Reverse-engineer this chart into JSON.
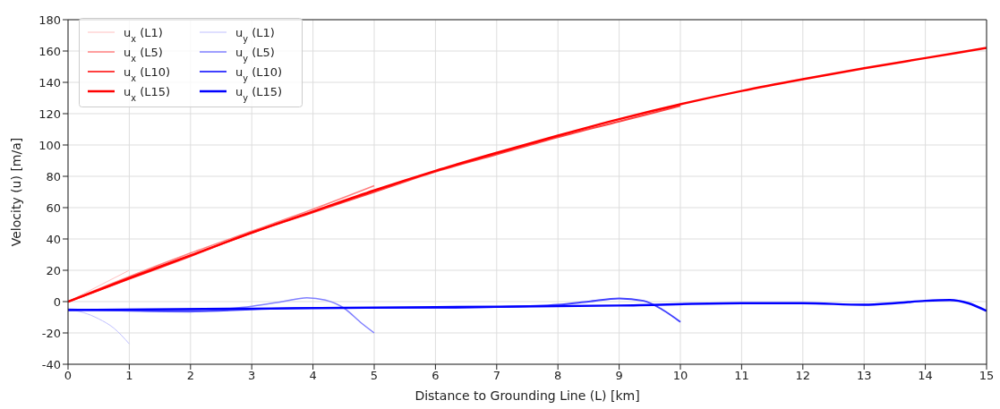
{
  "chart_data": {
    "type": "line",
    "xlabel": "Distance to Grounding Line (L) [km]",
    "ylabel": "Velocity (u) [m/a]",
    "xlim": [
      0,
      15
    ],
    "xticks": [
      0,
      1,
      2,
      3,
      4,
      5,
      6,
      7,
      8,
      9,
      10,
      11,
      12,
      13,
      14,
      15
    ],
    "ylim": [
      -40,
      180
    ],
    "yticks": [
      -40,
      -20,
      0,
      20,
      40,
      60,
      80,
      100,
      120,
      140,
      160,
      180
    ],
    "grid": true,
    "legend": "top left",
    "marker": "none",
    "line_style": "solid",
    "series": [
      {
        "name": "u$_{x}$ (L1)",
        "color": "#ffc0c0",
        "x": [
          0,
          0.5,
          1
        ],
        "values": [
          0,
          10,
          20
        ]
      },
      {
        "name": "u$_{x}$ (L5)",
        "color": "#ff8080",
        "x": [
          0,
          1,
          2,
          3,
          4,
          5
        ],
        "values": [
          0,
          16,
          31,
          45,
          59,
          74
        ]
      },
      {
        "name": "u$_{x}$ (L10)",
        "color": "#ff4040",
        "x": [
          0,
          1,
          2,
          3,
          4,
          5,
          6,
          7,
          8,
          9,
          10
        ],
        "values": [
          0,
          14.5,
          29,
          44,
          57,
          70,
          83,
          94,
          105,
          115,
          125
        ]
      },
      {
        "name": "u$_{x}$ (L15)",
        "color": "#ff0000",
        "x": [
          0,
          1,
          2,
          3,
          4,
          5,
          6,
          7,
          8,
          9,
          10,
          11,
          12,
          13,
          14,
          15
        ],
        "values": [
          0,
          15,
          29.5,
          44,
          57.5,
          71,
          83.5,
          95,
          106,
          116.5,
          126,
          134.5,
          142,
          149,
          155.5,
          162
        ]
      },
      {
        "name": "u$_{y}$ (L1)",
        "color": "#c0c0ff",
        "x": [
          0,
          0.25,
          0.5,
          0.75,
          1
        ],
        "values": [
          -5,
          -7,
          -11,
          -17,
          -27
        ]
      },
      {
        "name": "u$_{y}$ (L5)",
        "color": "#8080ff",
        "x": [
          0,
          1,
          2,
          2.5,
          3,
          3.5,
          3.9,
          4.2,
          4.5,
          4.8,
          5
        ],
        "values": [
          -5,
          -6,
          -6.5,
          -5,
          -3,
          0,
          2.5,
          1,
          -4,
          -14,
          -20
        ]
      },
      {
        "name": "u$_{y}$ (L10)",
        "color": "#4040ff",
        "x": [
          0,
          2,
          4,
          6,
          7,
          8,
          8.5,
          9,
          9.4,
          9.7,
          10
        ],
        "values": [
          -5,
          -6,
          -4,
          -4,
          -3.5,
          -2,
          0,
          2,
          0.5,
          -5,
          -13
        ]
      },
      {
        "name": "u$_{y}$ (L15)",
        "color": "#0000ff",
        "x": [
          0,
          3,
          6,
          9,
          11,
          12,
          13,
          13.5,
          14,
          14.4,
          14.7,
          15
        ],
        "values": [
          -5.5,
          -4.5,
          -3.5,
          -2.5,
          -1,
          -1,
          -2,
          -1,
          0.5,
          1,
          -1,
          -6
        ]
      }
    ]
  }
}
